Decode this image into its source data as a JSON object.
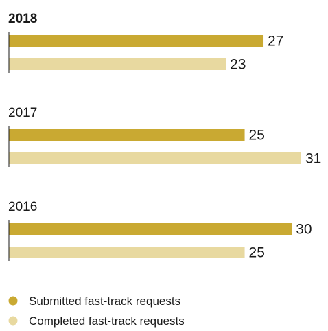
{
  "chart_data": {
    "type": "bar",
    "orientation": "horizontal",
    "groups": [
      {
        "label": "2018",
        "bold": true,
        "values": [
          27,
          23
        ]
      },
      {
        "label": "2017",
        "bold": false,
        "values": [
          25,
          31
        ]
      },
      {
        "label": "2016",
        "bold": false,
        "values": [
          30,
          25
        ]
      }
    ],
    "series": [
      {
        "name": "Submitted fast-track requests",
        "color": "#c9a932"
      },
      {
        "name": "Completed fast-track requests",
        "color": "#e8d9a0"
      }
    ],
    "xlim": [
      0,
      31
    ],
    "grid": false,
    "legend_position": "bottom-left"
  }
}
